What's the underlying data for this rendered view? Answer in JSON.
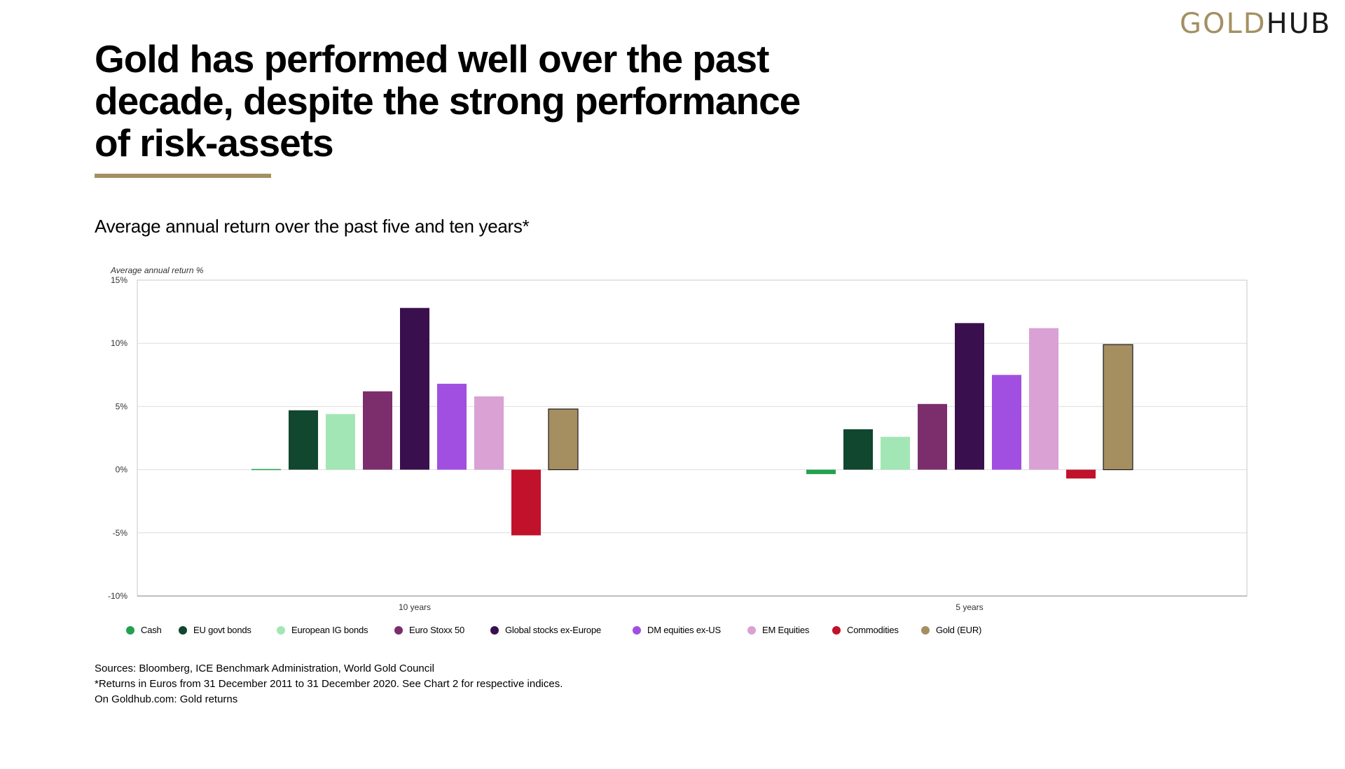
{
  "brand": {
    "logo_gold": "GOLD",
    "logo_hub": "HUB"
  },
  "header": {
    "title": "Gold has performed well over the past decade, despite the strong performance of risk-assets",
    "subtitle": "Average annual return over the past five and ten years*"
  },
  "footer": {
    "sources": "Sources: Bloomberg, ICE Benchmark Administration, World Gold Council",
    "note": "*Returns in Euros from 31 December 2011 to 31 December 2020. See Chart 2 for respective indices.",
    "link": "On Goldhub.com: Gold returns"
  },
  "chart_data": {
    "type": "bar",
    "ylabel": "Average annual return %",
    "ylim": [
      -10,
      15
    ],
    "yticks": [
      15,
      10,
      5,
      0,
      -5,
      -10
    ],
    "ytick_labels": [
      "15%",
      "10%",
      "5%",
      "0%",
      "-5%",
      "-10%"
    ],
    "grid": true,
    "legend_position": "bottom",
    "categories": [
      "10 years",
      "5 years"
    ],
    "series": [
      {
        "name": "Cash",
        "color": "#23a14f",
        "values": [
          0.05,
          -0.35
        ]
      },
      {
        "name": "EU govt bonds",
        "color": "#11462f",
        "values": [
          4.7,
          3.2
        ]
      },
      {
        "name": "European IG bonds",
        "color": "#a2e6b5",
        "values": [
          4.4,
          2.6
        ]
      },
      {
        "name": "Euro Stoxx 50",
        "color": "#7b2d6c",
        "values": [
          6.2,
          5.2
        ]
      },
      {
        "name": "Global stocks ex-Europe",
        "color": "#3a0f4e",
        "values": [
          12.8,
          11.6
        ]
      },
      {
        "name": "DM equities ex-US",
        "color": "#a14fe0",
        "values": [
          6.8,
          7.5
        ]
      },
      {
        "name": "EM Equities",
        "color": "#d9a1d4",
        "values": [
          5.8,
          11.2
        ]
      },
      {
        "name": "Commodities",
        "color": "#c1122b",
        "values": [
          -5.2,
          -0.7
        ]
      },
      {
        "name": "Gold (EUR)",
        "color": "#a58f60",
        "values": [
          4.8,
          9.9
        ]
      }
    ]
  }
}
